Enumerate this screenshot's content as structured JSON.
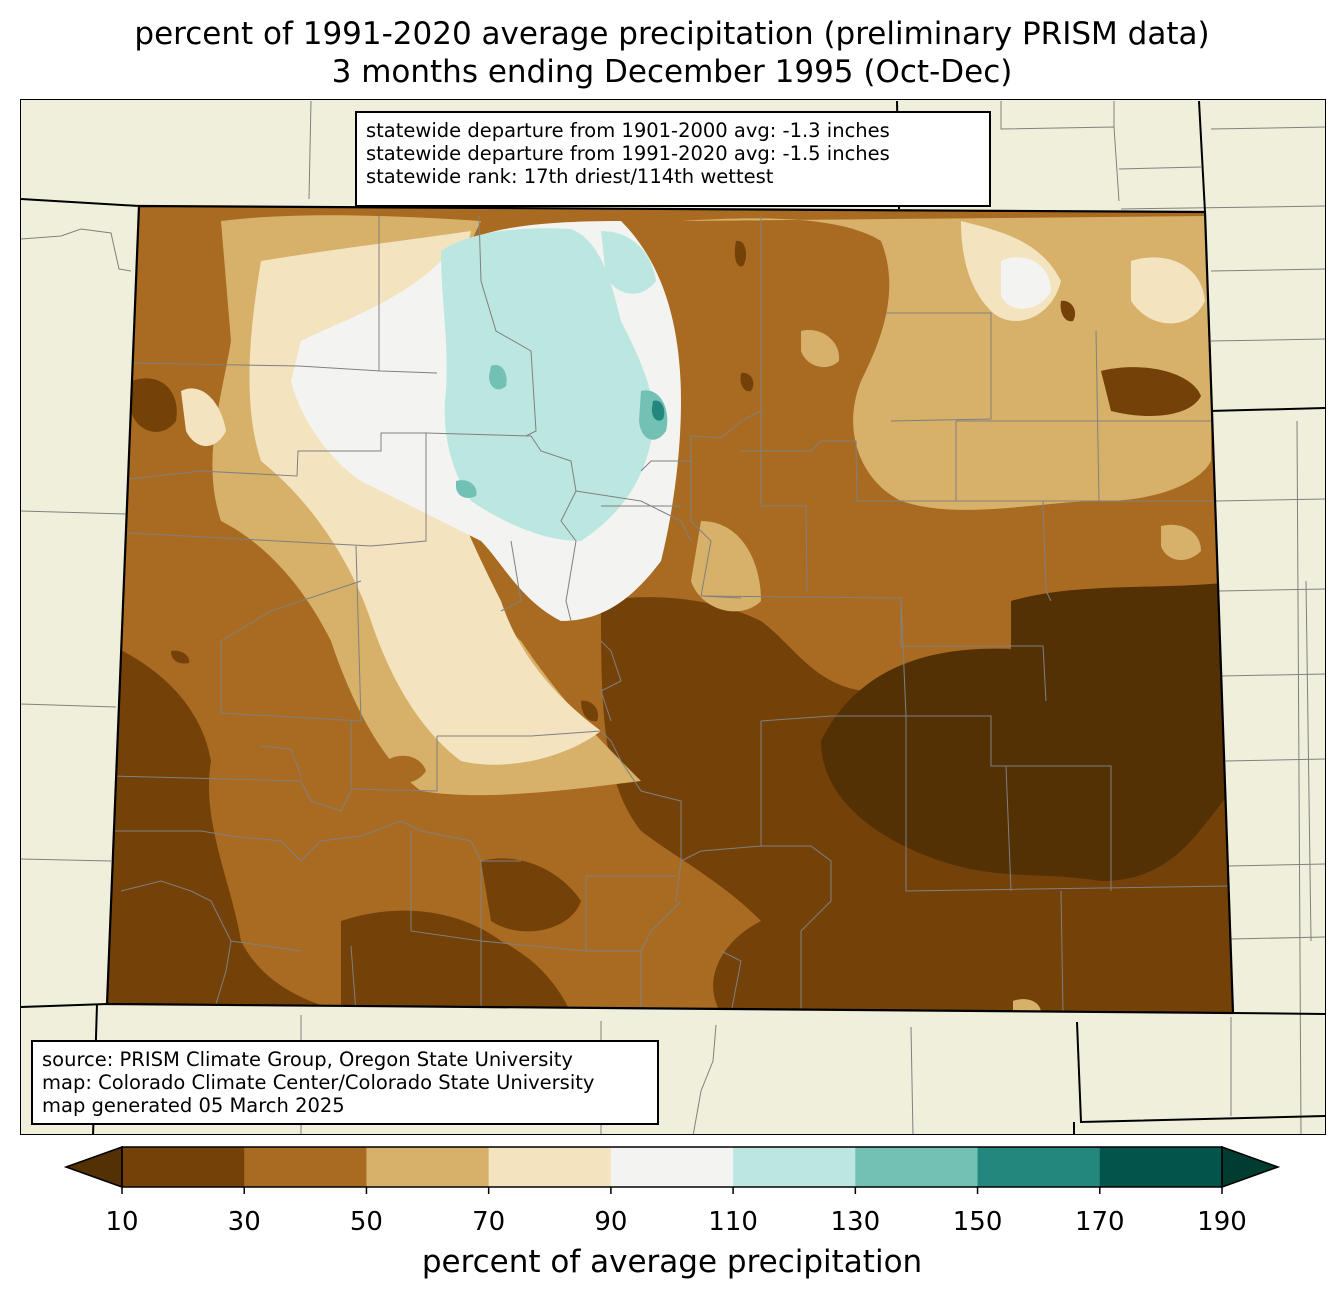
{
  "title": {
    "line1": "percent of 1991-2020 average precipitation (preliminary PRISM data)",
    "line2": "3 months ending December 1995 (Oct-Dec)"
  },
  "stats": {
    "line1": "statewide departure from 1901-2000 avg: -1.3 inches",
    "line2": "statewide departure from 1991-2020 avg: -1.5 inches",
    "line3": "statewide rank: 17th driest/114th wettest"
  },
  "source": {
    "line1": "source: PRISM Climate Group, Oregon State University",
    "line2": "map: Colorado Climate Center/Colorado State University",
    "line3": "map generated 05 March 2025"
  },
  "colorbar": {
    "label": "percent of average precipitation",
    "ticks": [
      "10",
      "30",
      "50",
      "70",
      "90",
      "110",
      "130",
      "150",
      "170",
      "190"
    ],
    "under_color": "#543005",
    "over_color": "#003c30",
    "bins": [
      {
        "range": "10-30",
        "color": "#744108"
      },
      {
        "range": "30-50",
        "color": "#a96b22"
      },
      {
        "range": "50-70",
        "color": "#d7b06a"
      },
      {
        "range": "70-90",
        "color": "#f3e3be"
      },
      {
        "range": "90-110",
        "color": "#f3f4f1"
      },
      {
        "range": "110-130",
        "color": "#bce6e0"
      },
      {
        "range": "130-150",
        "color": "#72c1b4"
      },
      {
        "range": "150-170",
        "color": "#24877d"
      },
      {
        "range": "170-190",
        "color": "#01554a"
      }
    ]
  },
  "map_colors": {
    "background_land": "#efefdc",
    "county_line": "#808080",
    "state_line": "#000000"
  }
}
